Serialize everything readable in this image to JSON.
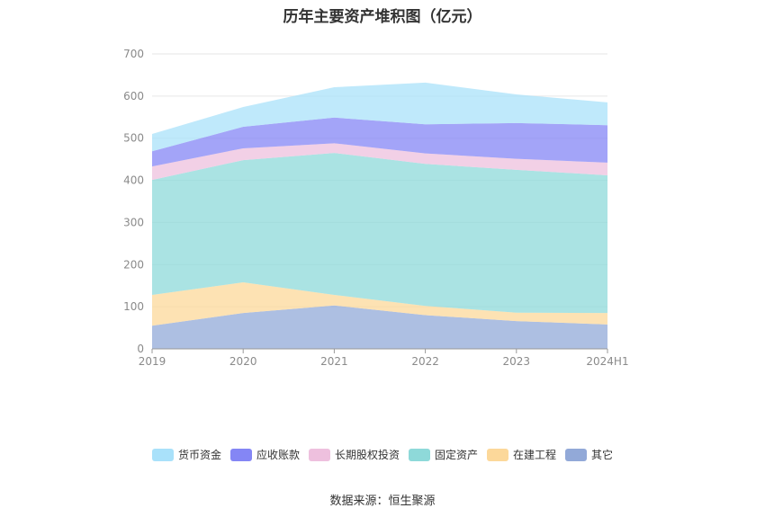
{
  "chart_data": {
    "type": "area",
    "stacked": true,
    "title": "历年主要资产堆积图（亿元）",
    "source": "数据来源：恒生聚源",
    "categories": [
      "2019",
      "2020",
      "2021",
      "2022",
      "2023",
      "2024H1"
    ],
    "y_ticks": [
      "0",
      "100",
      "200",
      "300",
      "400",
      "500",
      "600",
      "700"
    ],
    "ylim": [
      0,
      700
    ],
    "grid": true,
    "legend_position": "bottom",
    "series": [
      {
        "name": "其它",
        "color": "#92a9d8",
        "values": [
          55,
          85,
          103,
          80,
          66,
          58
        ]
      },
      {
        "name": "在建工程",
        "color": "#fcd89a",
        "values": [
          73,
          73,
          25,
          22,
          20,
          27
        ]
      },
      {
        "name": "固定资产",
        "color": "#8ed9d9",
        "values": [
          273,
          290,
          337,
          337,
          339,
          327
        ]
      },
      {
        "name": "长期股权投资",
        "color": "#eec0de",
        "values": [
          32,
          28,
          23,
          25,
          26,
          30
        ]
      },
      {
        "name": "应收账款",
        "color": "#8486f5",
        "values": [
          36,
          51,
          61,
          69,
          85,
          89
        ]
      },
      {
        "name": "货币资金",
        "color": "#a9e1fa",
        "values": [
          41,
          47,
          72,
          99,
          68,
          54
        ]
      }
    ],
    "legend_order": [
      "货币资金",
      "应收账款",
      "长期股权投资",
      "固定资产",
      "在建工程",
      "其它"
    ]
  }
}
